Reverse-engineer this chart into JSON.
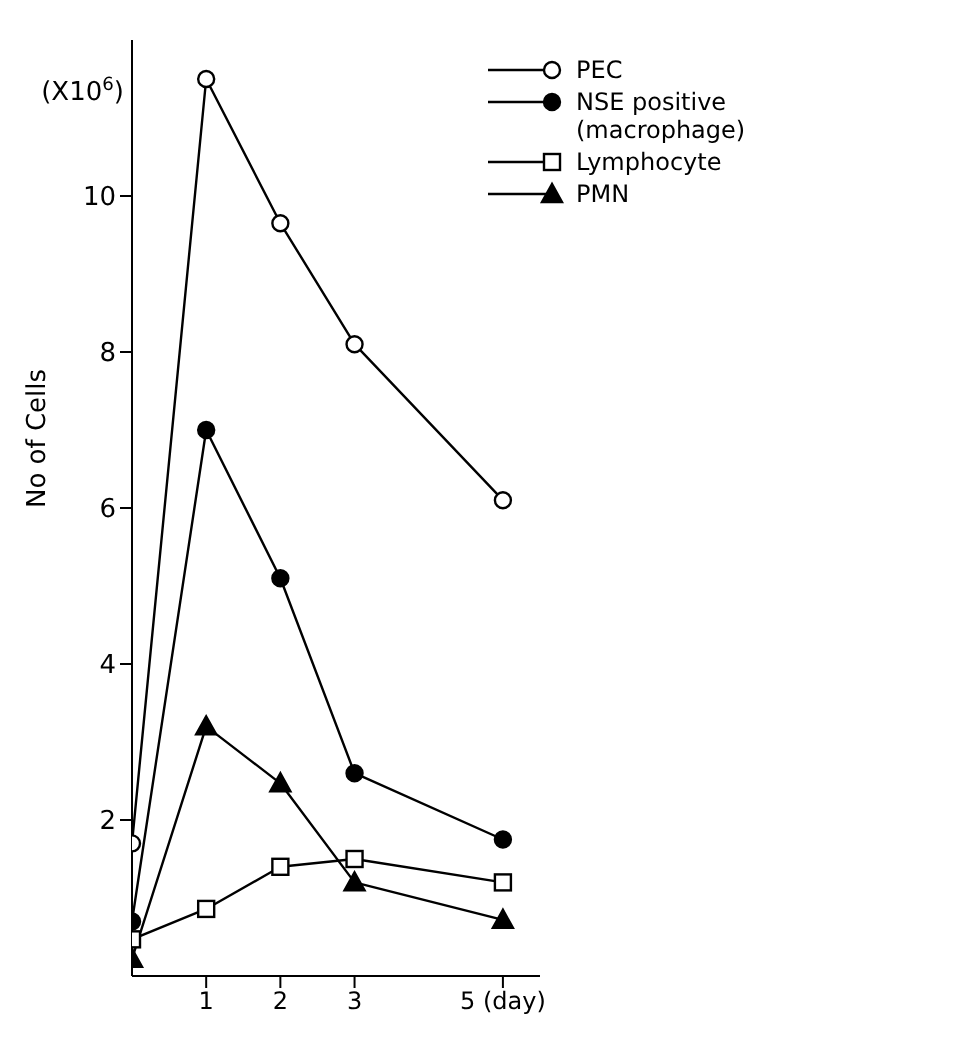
{
  "chart_data": {
    "type": "line",
    "ylabel": "No of Cells",
    "annotations": [
      "(X10$^{6}$)"
    ],
    "x": [
      0,
      1,
      2,
      3,
      5
    ],
    "xlim": [
      0,
      5.5
    ],
    "xticks": [
      1,
      2,
      3,
      {
        "value": 5,
        "label": "5 (day)"
      }
    ],
    "ylim": [
      0,
      12
    ],
    "yticks": [
      2,
      4,
      6,
      8,
      10
    ],
    "grid": false,
    "legend": "top right",
    "line_style": "solid",
    "series": [
      {
        "name": "PEC",
        "color": "#ffffff",
        "marker": "circle",
        "values": [
          1.7,
          11.5,
          9.65,
          8.1,
          6.1
        ]
      },
      {
        "name": "NSE positive\n(macrophage)",
        "color": "#000000",
        "marker": "circle",
        "values": [
          0.7,
          7.0,
          5.1,
          2.6,
          1.75
        ]
      },
      {
        "name": "Lymphocyte",
        "color": "#ffffff",
        "marker": "square",
        "values": [
          0.47,
          0.86,
          1.4,
          1.5,
          1.2
        ]
      },
      {
        "name": "PMN",
        "color": "#000000",
        "marker": "triangle",
        "values": [
          0.22,
          3.2,
          2.47,
          1.2,
          0.72
        ]
      }
    ]
  }
}
